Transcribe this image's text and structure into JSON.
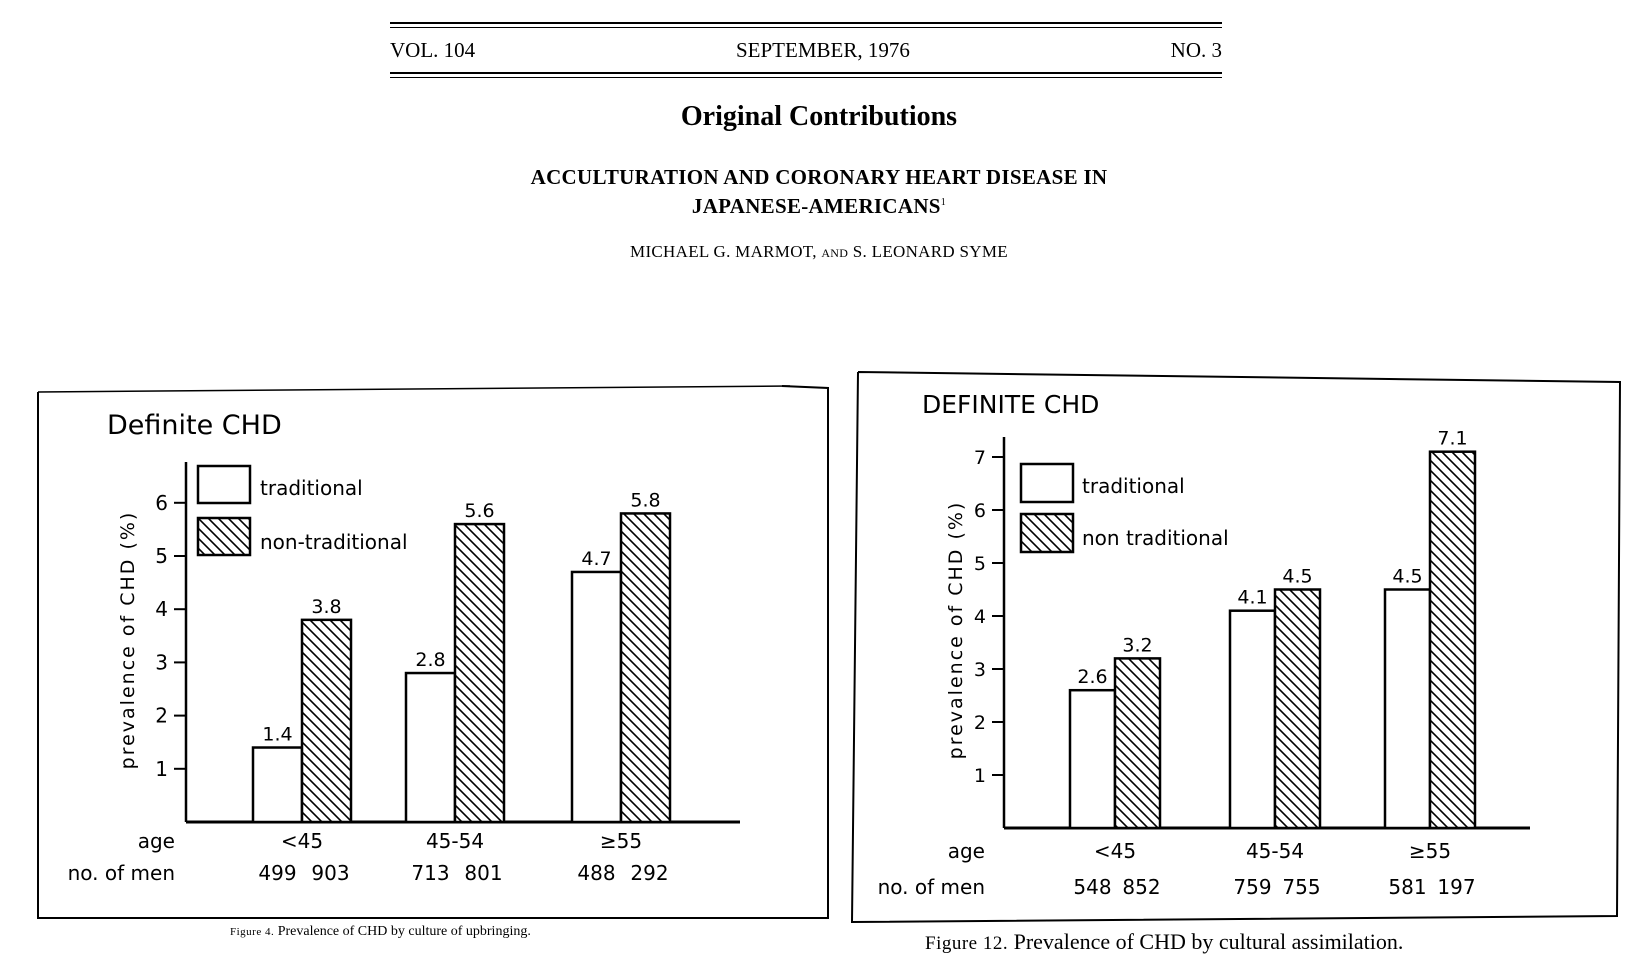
{
  "journal_header": {
    "volume": "VOL. 104",
    "date": "SEPTEMBER, 1976",
    "number": "NO. 3"
  },
  "section_title": "Original Contributions",
  "article_title_line1": "ACCULTURATION AND CORONARY HEART DISEASE IN",
  "article_title_line2": "JAPANESE-AMERICANS",
  "title_footnote": "1",
  "authors_a": "MICHAEL G. MARMOT,",
  "authors_and": "AND",
  "authors_b": "S. LEONARD SYME",
  "chart_data": [
    {
      "type": "bar",
      "title": "Definite CHD",
      "ylabel": "prevalence of CHD (%)",
      "xlabel": "age",
      "row2_label": "no. of men",
      "categories": [
        "<45",
        "45-54",
        "≥55"
      ],
      "ylim": [
        0,
        6.9
      ],
      "yticks": [
        1,
        2,
        3,
        4,
        5,
        6
      ],
      "series": [
        {
          "name": "traditional",
          "values": [
            1.4,
            2.8,
            4.7
          ],
          "value_labels": [
            "1.4",
            "2.8",
            "4.7"
          ],
          "fill": "#ffffff"
        },
        {
          "name": "non-traditional",
          "values": [
            3.8,
            5.6,
            5.8
          ],
          "value_labels": [
            "3.8",
            "5.6",
            "5.8"
          ],
          "fill": "hatch"
        }
      ],
      "men_counts": [
        [
          "499",
          "903"
        ],
        [
          "713",
          "801"
        ],
        [
          "488",
          "292"
        ]
      ],
      "caption_prefix": "Figure 4.",
      "caption": "Prevalence of CHD by culture of upbringing.",
      "legend": "top-left"
    },
    {
      "type": "bar",
      "title": "DEFINITE   CHD",
      "ylabel": "prevalence of CHD (%)",
      "xlabel": "age",
      "row2_label": "no. of men",
      "categories": [
        "<45",
        "45-54",
        "≥55"
      ],
      "ylim": [
        0,
        7.4
      ],
      "yticks": [
        1,
        2,
        3,
        4,
        5,
        6,
        7
      ],
      "series": [
        {
          "name": "traditional",
          "values": [
            2.6,
            4.1,
            4.5
          ],
          "value_labels": [
            "2.6",
            "4.1",
            "4.5"
          ],
          "fill": "#ffffff"
        },
        {
          "name": "non traditional",
          "values": [
            3.2,
            4.5,
            7.1
          ],
          "value_labels": [
            "3.2",
            "4.5",
            "7.1"
          ],
          "fill": "hatch"
        }
      ],
      "men_counts": [
        [
          "548",
          "852"
        ],
        [
          "759",
          "755"
        ],
        [
          "581",
          "197"
        ]
      ],
      "caption_prefix": "Figure 12.",
      "caption": "Prevalence of CHD by cultural assimilation.",
      "legend": "top-left"
    }
  ]
}
